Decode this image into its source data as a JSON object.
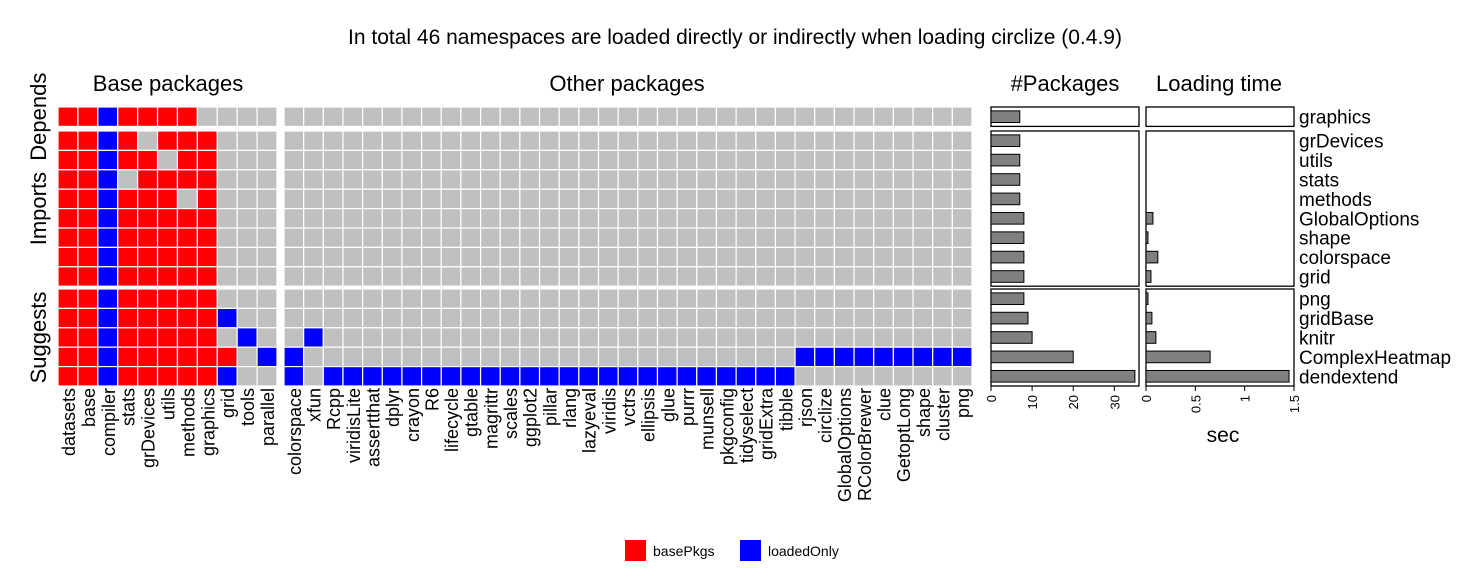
{
  "chart_data": {
    "type": "heatmap",
    "title": "In total 46 namespaces are loaded directly or indirectly when loading circlize (0.4.9)",
    "panels": {
      "base_title": "Base packages",
      "other_title": "Other packages",
      "packages_title": "#Packages",
      "time_title": "Loading time"
    },
    "row_groups": [
      "Depends",
      "Imports",
      "Suggests"
    ],
    "rows": [
      "graphics",
      "grDevices",
      "utils",
      "stats",
      "methods",
      "GlobalOptions",
      "shape",
      "colorspace",
      "grid",
      "png",
      "gridBase",
      "knitr",
      "ComplexHeatmap",
      "dendextend"
    ],
    "row_group_of": [
      "Depends",
      "Imports",
      "Imports",
      "Imports",
      "Imports",
      "Imports",
      "Imports",
      "Imports",
      "Imports",
      "Suggests",
      "Suggests",
      "Suggests",
      "Suggests",
      "Suggests"
    ],
    "base_columns": [
      "datasets",
      "base",
      "compiler",
      "stats",
      "grDevices",
      "utils",
      "methods",
      "graphics",
      "grid",
      "tools",
      "parallel"
    ],
    "other_columns": [
      "colorspace",
      "xfun",
      "Rcpp",
      "viridisLite",
      "assertthat",
      "dplyr",
      "crayon",
      "R6",
      "lifecycle",
      "gtable",
      "magrittr",
      "scales",
      "ggplot2",
      "pillar",
      "rlang",
      "lazyeval",
      "viridis",
      "vctrs",
      "ellipsis",
      "glue",
      "purrr",
      "munsell",
      "pkgconfig",
      "tidyselect",
      "gridExtra",
      "tibble",
      "rjson",
      "circlize",
      "GlobalOptions",
      "RColorBrewer",
      "clue",
      "GetoptLong",
      "shape",
      "cluster",
      "png"
    ],
    "base_matrix": [
      "RRBRRRR....",
      "RRBR.RRR...",
      "RRBRR.RR...",
      "RRB.RRRR...",
      "RRBRRR.R...",
      "RRBRRRRR...",
      "RRBRRRRR...",
      "RRBRRRRR...",
      "RRBRRRRR...",
      "RRBRRRRR...",
      "RRBRRRRRB..",
      "RRBRRRRR.B.",
      "RRBRRRRRR.B",
      "RRBRRRRRB.."
    ],
    "other_matrix": [
      "...................................",
      "...................................",
      "...................................",
      "...................................",
      "...................................",
      "...................................",
      "...................................",
      "...................................",
      "...................................",
      "...................................",
      "...................................",
      ".B.................................",
      "B.........................BBBBBBBBB",
      "B.BBBBBBBBBBBBBBBBBBBBBBBB........."
    ],
    "n_packages": [
      7,
      7,
      7,
      7,
      7,
      8,
      8,
      8,
      8,
      8,
      9,
      10,
      20,
      35
    ],
    "loading_time_sec": [
      0,
      0,
      0,
      0,
      0,
      0.07,
      0.02,
      0.12,
      0.05,
      0.02,
      0.06,
      0.1,
      0.65,
      1.45
    ],
    "packages_axis": {
      "ticks": [
        "0",
        "10",
        "20",
        "30"
      ],
      "lim": [
        0,
        36
      ]
    },
    "time_axis": {
      "ticks": [
        "0",
        "0.5",
        "1",
        "1.5"
      ],
      "lim": [
        0,
        1.5
      ],
      "label": "sec"
    },
    "legend": {
      "items": [
        {
          "label": "basePkgs",
          "color": "#ff0000"
        },
        {
          "label": "loadedOnly",
          "color": "#0000ff"
        }
      ],
      "position": "bottom-center"
    },
    "colors": {
      "base": "#ff0000",
      "loaded": "#0000ff",
      "empty": "#c0c0c0",
      "bar": "#808080"
    }
  }
}
